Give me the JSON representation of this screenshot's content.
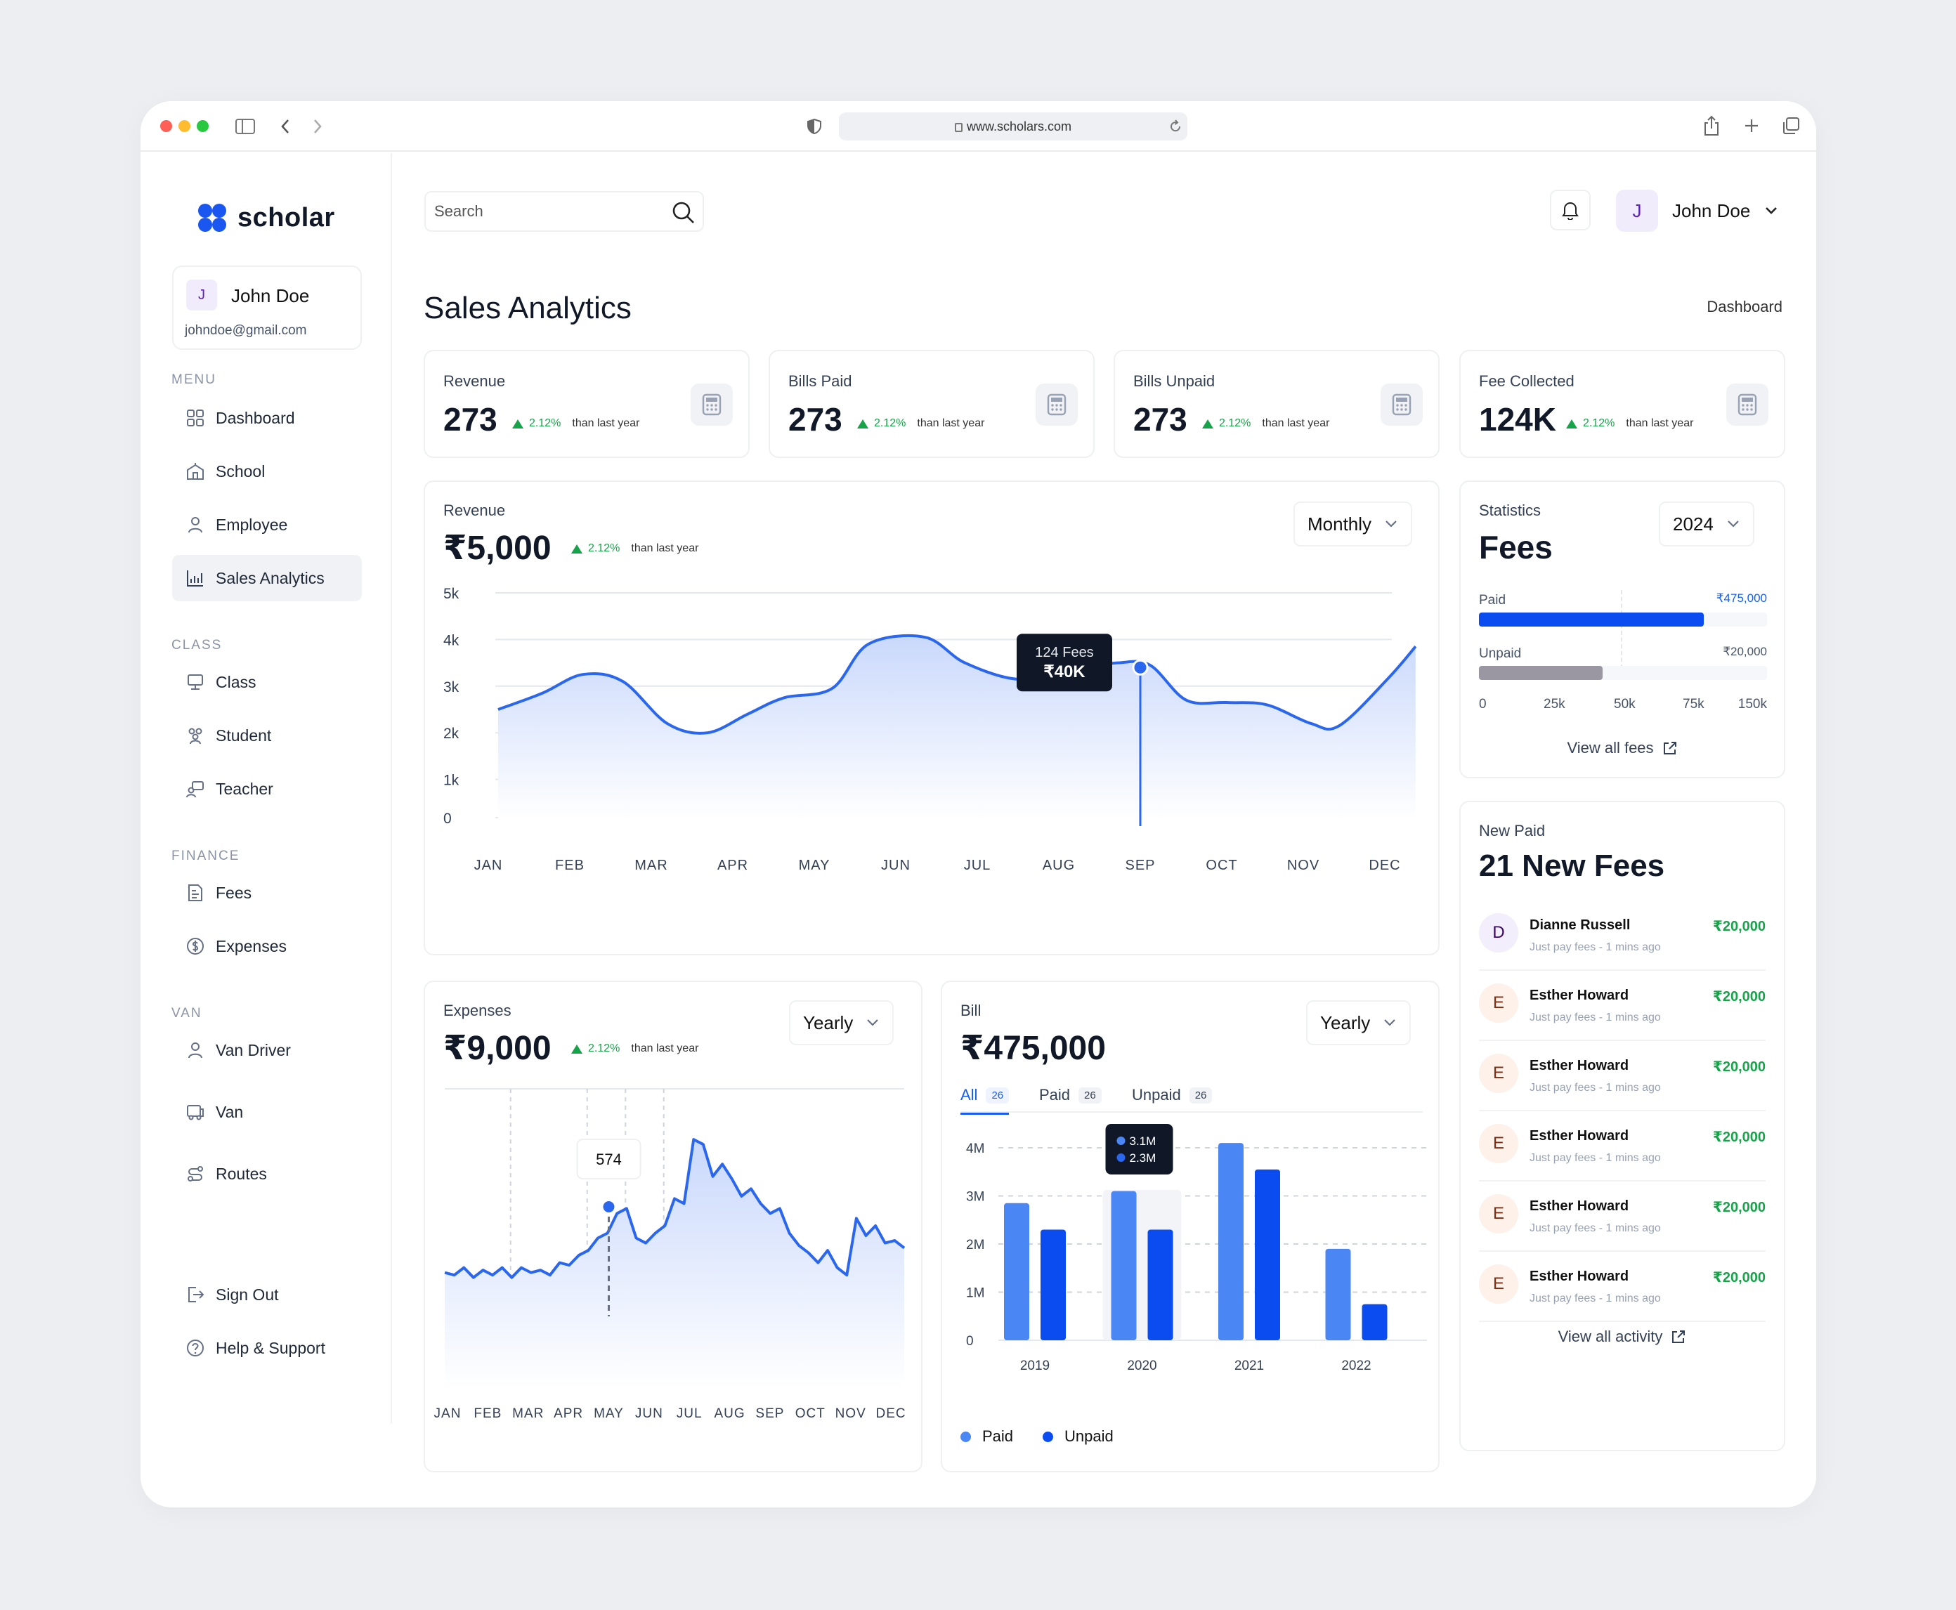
{
  "browser": {
    "url": "www.scholars.com"
  },
  "brand": {
    "name": "scholar",
    "accent": "#1a56f0"
  },
  "user": {
    "initial": "J",
    "name": "John Doe",
    "email": "johndoe@gmail.com"
  },
  "sidebar": {
    "menu_label": "MENU",
    "menu": [
      {
        "label": "Dashboard",
        "icon": "grid-icon"
      },
      {
        "label": "School",
        "icon": "school-icon"
      },
      {
        "label": "Employee",
        "icon": "user-icon"
      },
      {
        "label": "Sales Analytics",
        "icon": "analytics-icon"
      }
    ],
    "class_label": "CLASS",
    "class": [
      {
        "label": "Class",
        "icon": "board-icon"
      },
      {
        "label": "Student",
        "icon": "users-icon"
      },
      {
        "label": "Teacher",
        "icon": "teacher-icon"
      }
    ],
    "finance_label": "FINANCE",
    "finance": [
      {
        "label": "Fees",
        "icon": "receipt-icon"
      },
      {
        "label": "Expenses",
        "icon": "dollar-icon"
      }
    ],
    "van_label": "VAN",
    "van": [
      {
        "label": "Van Driver",
        "icon": "driver-icon"
      },
      {
        "label": "Van",
        "icon": "bus-icon"
      },
      {
        "label": "Routes",
        "icon": "route-icon"
      }
    ],
    "footer": [
      {
        "label": "Sign Out",
        "icon": "logout-icon"
      },
      {
        "label": "Help & Support",
        "icon": "help-icon"
      }
    ]
  },
  "search": {
    "placeholder": "Search"
  },
  "page": {
    "title": "Sales Analytics",
    "breadcrumb": "Dashboard"
  },
  "kpis": [
    {
      "label": "Revenue",
      "value": "273",
      "pct": "2.12%",
      "suffix": "than last year"
    },
    {
      "label": "Bills Paid",
      "value": "273",
      "pct": "2.12%",
      "suffix": "than last year"
    },
    {
      "label": "Bills Unpaid",
      "value": "273",
      "pct": "2.12%",
      "suffix": "than last year"
    },
    {
      "label": "Fee Collected",
      "value": "124K",
      "pct": "2.12%",
      "suffix": "than last year"
    }
  ],
  "revenue": {
    "label": "Revenue",
    "value": "₹5,000",
    "pct": "2.12%",
    "suffix": "than last year",
    "period": "Monthly",
    "tooltip_title": "124 Fees",
    "tooltip_value": "₹40K"
  },
  "statistics": {
    "label": "Statistics",
    "year": "2024",
    "title": "Fees",
    "paid_label": "Paid",
    "paid_value": "₹475,000",
    "paid_fraction": 0.78,
    "unpaid_label": "Unpaid",
    "unpaid_value": "₹20,000",
    "unpaid_fraction": 0.43,
    "ticks": [
      "0",
      "25k",
      "50k",
      "75k",
      "150k"
    ],
    "link": "View all fees",
    "paid_color": "#0a4cf0",
    "unpaid_color": "#9a97a3"
  },
  "expenses": {
    "label": "Expenses",
    "value": "₹9,000",
    "pct": "2.12%",
    "suffix": "than last year",
    "period": "Yearly",
    "tooltip": "574"
  },
  "bill": {
    "label": "Bill",
    "value": "₹475,000",
    "period": "Yearly",
    "tabs": [
      {
        "label": "All",
        "count": "26"
      },
      {
        "label": "Paid",
        "count": "26"
      },
      {
        "label": "Unpaid",
        "count": "26"
      }
    ],
    "tooltip": [
      "3.1M",
      "2.3M"
    ],
    "legend": [
      {
        "label": "Paid",
        "color": "#4b86f5"
      },
      {
        "label": "Unpaid",
        "color": "#0a4cf0"
      }
    ]
  },
  "new_paid": {
    "label": "New Paid",
    "title": "21 New Fees",
    "items": [
      {
        "initial": "D",
        "name": "Dianne Russell",
        "sub": "Just pay fees - 1 mins ago",
        "amount": "₹20,000"
      },
      {
        "initial": "E",
        "name": "Esther Howard",
        "sub": "Just pay fees - 1 mins ago",
        "amount": "₹20,000"
      },
      {
        "initial": "E",
        "name": "Esther Howard",
        "sub": "Just pay fees - 1 mins ago",
        "amount": "₹20,000"
      },
      {
        "initial": "E",
        "name": "Esther Howard",
        "sub": "Just pay fees - 1 mins ago",
        "amount": "₹20,000"
      },
      {
        "initial": "E",
        "name": "Esther Howard",
        "sub": "Just pay fees - 1 mins ago",
        "amount": "₹20,000"
      },
      {
        "initial": "E",
        "name": "Esther Howard",
        "sub": "Just pay fees - 1 mins ago",
        "amount": "₹20,000"
      }
    ],
    "link": "View all activity"
  },
  "chart_data": [
    {
      "type": "area",
      "title": "Revenue",
      "categories": [
        "JAN",
        "FEB",
        "MAR",
        "APR",
        "MAY",
        "JUN",
        "JUL",
        "AUG",
        "SEP",
        "OCT",
        "NOV",
        "DEC"
      ],
      "y_ticks": [
        "0",
        "1k",
        "2k",
        "3k",
        "4k",
        "5k"
      ],
      "ylim": [
        0,
        5000
      ],
      "x": [
        0,
        0.55,
        1.05,
        1.55,
        2.1,
        2.6,
        3.1,
        3.55,
        4.15,
        4.6,
        5.3,
        5.8,
        6.45,
        7.05,
        7.7,
        8.1,
        8.55,
        9.05,
        9.55,
        10.1,
        10.45,
        11.05,
        11.4
      ],
      "values": [
        2500,
        2850,
        3250,
        3100,
        2200,
        2000,
        2400,
        2750,
        2950,
        3900,
        4050,
        3500,
        3150,
        3350,
        3500,
        3450,
        2700,
        2650,
        2600,
        2200,
        2150,
        3150,
        3850
      ],
      "highlight": {
        "category": "SEP",
        "value": 3400
      }
    },
    {
      "type": "area",
      "title": "Expenses",
      "categories": [
        "JAN",
        "FEB",
        "MAR",
        "APR",
        "MAY",
        "JUN",
        "JUL",
        "AUG",
        "SEP",
        "OCT",
        "NOV",
        "DEC"
      ],
      "values_norm": [
        0.36,
        0.35,
        0.38,
        0.34,
        0.37,
        0.35,
        0.38,
        0.34,
        0.38,
        0.36,
        0.37,
        0.35,
        0.4,
        0.39,
        0.43,
        0.45,
        0.5,
        0.52,
        0.6,
        0.62,
        0.5,
        0.48,
        0.52,
        0.55,
        0.66,
        0.64,
        0.9,
        0.88,
        0.75,
        0.8,
        0.74,
        0.67,
        0.7,
        0.64,
        0.6,
        0.62,
        0.52,
        0.47,
        0.44,
        0.4,
        0.45,
        0.38,
        0.35,
        0.58,
        0.51,
        0.55,
        0.48,
        0.49,
        0.46
      ],
      "highlight": {
        "category": "MAY",
        "label": "574"
      }
    },
    {
      "type": "bar",
      "title": "Bill",
      "categories": [
        "2019",
        "2020",
        "2021",
        "2022"
      ],
      "y_ticks": [
        "0",
        "1M",
        "2M",
        "3M",
        "4M"
      ],
      "ylim": [
        0,
        4
      ],
      "series": [
        {
          "name": "Paid",
          "values": [
            2.85,
            3.1,
            4.1,
            1.9
          ]
        },
        {
          "name": "Unpaid",
          "values": [
            2.3,
            2.3,
            3.55,
            0.75
          ]
        }
      ],
      "highlight": {
        "category": "2020",
        "values": [
          "3.1M",
          "2.3M"
        ]
      }
    }
  ]
}
